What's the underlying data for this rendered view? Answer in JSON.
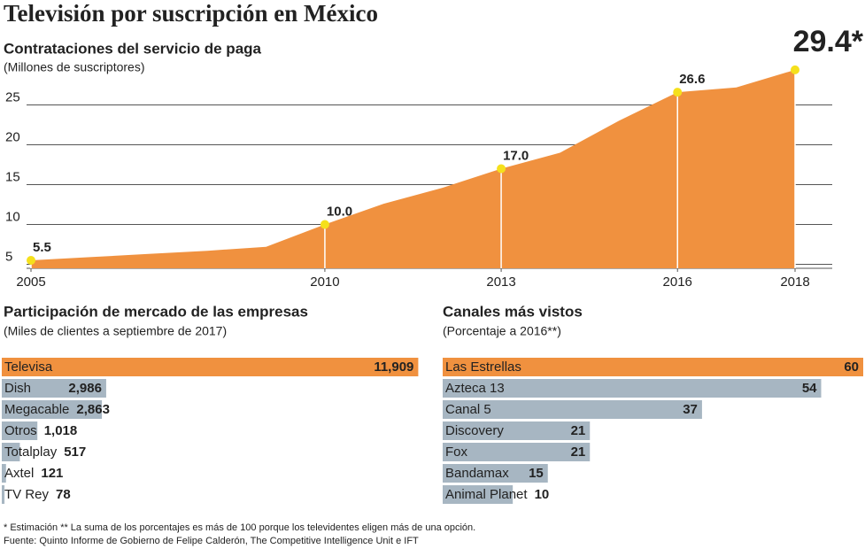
{
  "title": "Televisión por suscripción en México",
  "notes": [
    "* Estimación ** La suma de los porcentajes es más de 100 porque los televidentes eligen más de una opción.",
    "Fuente: Quinto Informe de Gobierno de Felipe Calderón, The Competitive Intelligence Unit e IFT"
  ],
  "chart_data": [
    {
      "type": "area",
      "title": "Contrataciones del servicio de paga",
      "subtitle": "(Millones de suscriptores)",
      "x": [
        2005,
        2006,
        2007,
        2008,
        2009,
        2010,
        2011,
        2012,
        2013,
        2014,
        2015,
        2016,
        2017,
        2018
      ],
      "values": [
        5.5,
        5.9,
        6.3,
        6.7,
        7.2,
        10.0,
        12.6,
        14.6,
        17.0,
        19.0,
        23.0,
        26.6,
        27.2,
        29.4
      ],
      "value_labels": [
        "5.5",
        null,
        null,
        null,
        null,
        "10.0",
        null,
        null,
        "17.0",
        null,
        null,
        "26.6",
        null,
        "29.4*"
      ],
      "color": "#f0913f",
      "point_color": "#f5e01c",
      "xlim": [
        2005,
        2018
      ],
      "xticks": [
        2005,
        2010,
        2013,
        2016,
        2018
      ],
      "ylim": [
        4.5,
        30.5
      ],
      "yticks": [
        5,
        10,
        15,
        20,
        25
      ],
      "grid": true
    },
    {
      "type": "hbar",
      "title": "Participación de mercado de las empresas",
      "subtitle": "(Miles de clientes a septiembre de 2017)",
      "categories": [
        "Televisa",
        "Dish",
        "Megacable",
        "Otros",
        "Totalplay",
        "Axtel",
        "TV Rey"
      ],
      "values": [
        11909,
        2986,
        2863,
        1018,
        517,
        121,
        78
      ],
      "value_labels": [
        "11,909",
        "2,986",
        "2,863",
        "1,018",
        "517",
        "121",
        "78"
      ],
      "colors": [
        "#f0913f",
        "#a7b6c2",
        "#a7b6c2",
        "#a7b6c2",
        "#a7b6c2",
        "#a7b6c2",
        "#a7b6c2"
      ],
      "xlim": [
        0,
        12000
      ]
    },
    {
      "type": "hbar",
      "title": "Canales más vistos",
      "subtitle": "(Porcentaje a 2016**)",
      "categories": [
        "Las Estrellas",
        "Azteca 13",
        "Canal 5",
        "Discovery",
        "Fox",
        "Bandamax",
        "Animal Planet"
      ],
      "values": [
        60,
        54,
        37,
        21,
        21,
        15,
        10
      ],
      "colors": [
        "#f0913f",
        "#a7b6c2",
        "#a7b6c2",
        "#a7b6c2",
        "#a7b6c2",
        "#a7b6c2",
        "#a7b6c2"
      ],
      "xlim": [
        0,
        60
      ]
    }
  ]
}
